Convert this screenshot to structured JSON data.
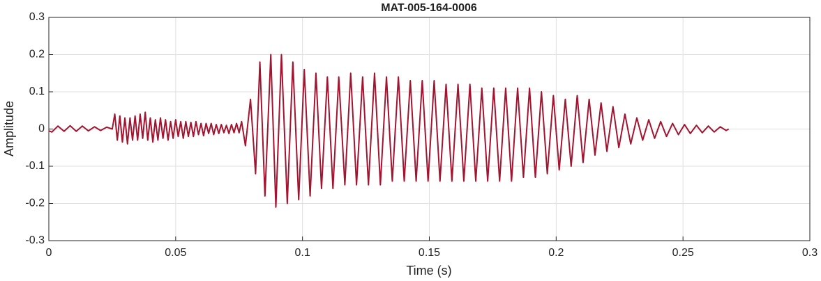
{
  "chart_data": {
    "type": "line",
    "title": "MAT-005-164-0006",
    "x_label": "Time (s)",
    "y_label": "Amplitude",
    "color": "#a2142f",
    "grid": true,
    "xlim": [
      0,
      0.3
    ],
    "xticks": [
      0,
      0.05,
      0.1,
      0.15,
      0.2,
      0.25,
      0.3
    ],
    "ylim": [
      -0.3,
      0.3
    ],
    "yticks": [
      -0.3,
      -0.2,
      -0.1,
      0,
      0.1,
      0.2,
      0.3
    ],
    "x": [
      0,
      0.0012,
      0.0036,
      0.006,
      0.0084,
      0.0108,
      0.0132,
      0.0156,
      0.018,
      0.0204,
      0.0228,
      0.025,
      0.026,
      0.027,
      0.028,
      0.029,
      0.03,
      0.031,
      0.032,
      0.033,
      0.034,
      0.035,
      0.036,
      0.037,
      0.038,
      0.039,
      0.04,
      0.041,
      0.042,
      0.043,
      0.044,
      0.045,
      0.046,
      0.047,
      0.048,
      0.049,
      0.05,
      0.051,
      0.052,
      0.053,
      0.054,
      0.055,
      0.056,
      0.057,
      0.058,
      0.059,
      0.06,
      0.061,
      0.062,
      0.063,
      0.064,
      0.065,
      0.066,
      0.067,
      0.068,
      0.069,
      0.07,
      0.071,
      0.072,
      0.073,
      0.074,
      0.075,
      0.076,
      0.0775,
      0.0795,
      0.0815,
      0.0832,
      0.0852,
      0.0875,
      0.0895,
      0.0917,
      0.094,
      0.0962,
      0.0985,
      0.1007,
      0.103,
      0.1053,
      0.1075,
      0.1098,
      0.112,
      0.1143,
      0.1167,
      0.119,
      0.1213,
      0.1237,
      0.126,
      0.1284,
      0.1307,
      0.1331,
      0.1354,
      0.1378,
      0.1401,
      0.1425,
      0.1448,
      0.1472,
      0.1495,
      0.1519,
      0.1542,
      0.1566,
      0.1589,
      0.1613,
      0.1636,
      0.166,
      0.1683,
      0.1707,
      0.173,
      0.1754,
      0.1777,
      0.1801,
      0.1824,
      0.1848,
      0.1871,
      0.1895,
      0.1918,
      0.1942,
      0.1965,
      0.1989,
      0.2012,
      0.2036,
      0.2059,
      0.2083,
      0.2106,
      0.213,
      0.2153,
      0.2177,
      0.22,
      0.2224,
      0.2247,
      0.2271,
      0.2294,
      0.2318,
      0.2341,
      0.2365,
      0.2388,
      0.2412,
      0.2435,
      0.2459,
      0.2482,
      0.2506,
      0.2529,
      0.2553,
      0.2576,
      0.26,
      0.2623,
      0.2647,
      0.267,
      0.268
    ],
    "values": [
      -0.005,
      -0.008,
      0.008,
      -0.006,
      0.009,
      -0.006,
      0.008,
      -0.005,
      0.006,
      -0.004,
      0.005,
      0,
      0.04,
      -0.03,
      0.035,
      -0.035,
      0.03,
      -0.04,
      0.03,
      -0.03,
      0.035,
      -0.03,
      0.04,
      -0.025,
      0.045,
      -0.03,
      0.03,
      -0.035,
      0.025,
      -0.03,
      0.03,
      -0.025,
      0.025,
      -0.03,
      0.02,
      -0.025,
      0.025,
      -0.02,
      0.02,
      -0.025,
      0.02,
      -0.02,
      0.018,
      -0.02,
      0.02,
      -0.015,
      0.015,
      -0.018,
      0.015,
      -0.012,
      0.015,
      -0.015,
      0.012,
      -0.012,
      0.012,
      -0.01,
      0.01,
      -0.012,
      0.012,
      -0.01,
      0.015,
      -0.01,
      0.02,
      -0.045,
      0.08,
      -0.12,
      0.18,
      -0.18,
      0.2,
      -0.21,
      0.2,
      -0.2,
      0.18,
      -0.19,
      0.16,
      -0.18,
      0.15,
      -0.16,
      0.14,
      -0.16,
      0.14,
      -0.15,
      0.15,
      -0.15,
      0.14,
      -0.15,
      0.15,
      -0.15,
      0.14,
      -0.14,
      0.14,
      -0.14,
      0.13,
      -0.14,
      0.13,
      -0.14,
      0.13,
      -0.14,
      0.12,
      -0.14,
      0.12,
      -0.14,
      0.12,
      -0.14,
      0.11,
      -0.14,
      0.11,
      -0.14,
      0.11,
      -0.14,
      0.11,
      -0.13,
      0.11,
      -0.13,
      0.1,
      -0.12,
      0.09,
      -0.11,
      0.08,
      -0.1,
      0.09,
      -0.09,
      0.08,
      -0.07,
      0.07,
      -0.06,
      0.06,
      -0.05,
      0.04,
      -0.04,
      0.03,
      -0.03,
      0.025,
      -0.025,
      0.02,
      -0.02,
      0.015,
      -0.015,
      0.012,
      -0.012,
      0.01,
      -0.01,
      0.008,
      -0.008,
      0.006,
      -0.004,
      0
    ]
  }
}
